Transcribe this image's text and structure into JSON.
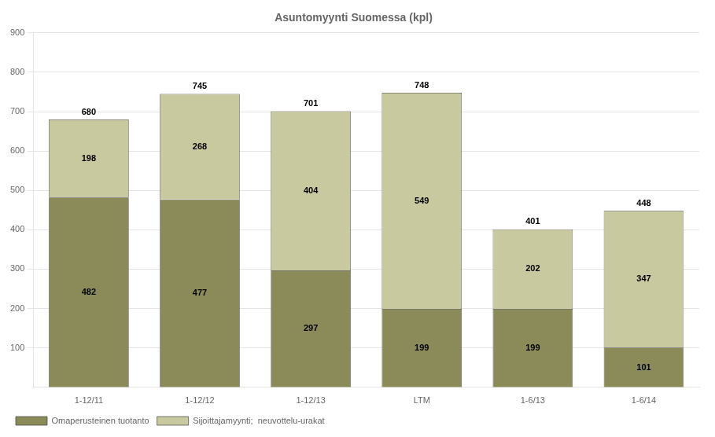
{
  "chart_data": {
    "type": "bar",
    "title": "Asuntomyynti Suomessa (kpl)",
    "categories": [
      "1-12/11",
      "1-12/12",
      "1-12/13",
      "LTM",
      "1-6/13",
      "1-6/14"
    ],
    "series": [
      {
        "name": "Omaperusteinen tuotanto",
        "color": "#8B8B5A",
        "values": [
          482,
          477,
          297,
          199,
          199,
          101
        ]
      },
      {
        "name": "Sijoittajamyynti;  neuvottelu-urakat",
        "color": "#C9C9A0",
        "values": [
          198,
          268,
          404,
          549,
          202,
          347
        ]
      }
    ],
    "totals": [
      680,
      745,
      701,
      748,
      401,
      448
    ],
    "ylim": [
      0,
      900
    ],
    "yticks": [
      100,
      200,
      300,
      400,
      500,
      600,
      700,
      800,
      900
    ],
    "stacked": true,
    "data_labels": true,
    "grid": true,
    "legend": "lower left"
  }
}
